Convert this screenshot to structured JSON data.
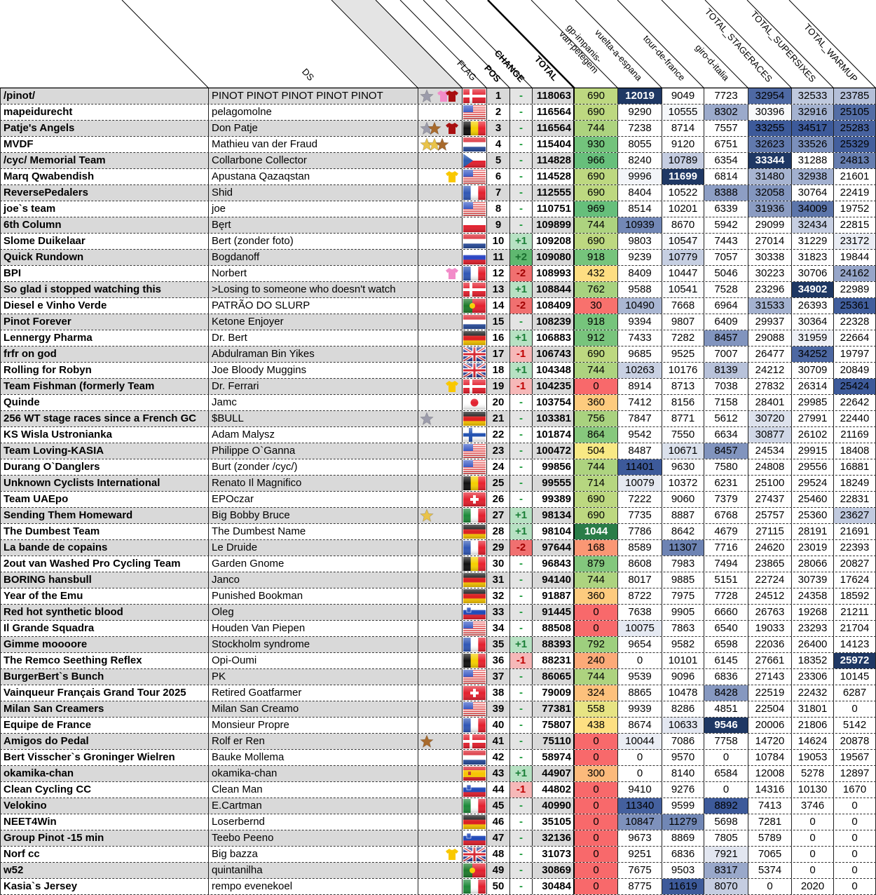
{
  "headers": {
    "team": "",
    "ds": "DS",
    "icons": "",
    "flag": "FLAG",
    "pos": "POS",
    "change": "CHANGE",
    "total": "TOTAL",
    "gp": "gp-impanis-van-petegem",
    "vuelta": "vuelta-a-espana",
    "tour": "tour-de-france",
    "giro": "giro-d-italia",
    "stageraces": "TOTAL_STAGERACES",
    "supersixes": "TOTAL_SUPERSIXES",
    "warmup": "TOTAL_WARMUP"
  },
  "colors": {
    "stripe": "#d9d9d9",
    "gp_low": "#f8696b",
    "gp_mid": "#ffeb84",
    "gp_high": "#63be7b",
    "gp_max": "#2a7d48",
    "race_high": "#3d5a9a",
    "race_max": "#1f3864",
    "change_up1": "#b7e1c3",
    "change_up2": "#5fb870",
    "change_down1": "#f6b8b8",
    "change_down2": "#f07070"
  },
  "rows": [
    {
      "team": "/pinot/",
      "ds": "PINOT PINOT PINOT PINOT PINOT",
      "icons": [
        "star-silver",
        "jersey-pink",
        "jersey-red"
      ],
      "flag": "dk",
      "pos": "1",
      "change": "-",
      "total": "118063",
      "gp": "690",
      "vuelta": "12019",
      "tour": "9049",
      "giro": "7723",
      "stageraces": "32954",
      "supersixes": "32533",
      "warmup": "23785"
    },
    {
      "team": "mapeidurecht",
      "ds": "pelagomolne",
      "icons": [],
      "flag": "us",
      "pos": "2",
      "change": "-",
      "total": "116564",
      "gp": "690",
      "vuelta": "9290",
      "tour": "10555",
      "giro": "8302",
      "stageraces": "30396",
      "supersixes": "32916",
      "warmup": "25105"
    },
    {
      "team": "Patje's Angels",
      "ds": "Don Patje",
      "icons": [
        "star-silver",
        "star-bronze",
        "jersey-red"
      ],
      "flag": "be",
      "pos": "3",
      "change": "-",
      "total": "116564",
      "gp": "744",
      "vuelta": "7238",
      "tour": "8714",
      "giro": "7557",
      "stageraces": "33255",
      "supersixes": "34517",
      "warmup": "25283"
    },
    {
      "team": "MVDF",
      "ds": "Mathieu van der Fraud",
      "icons": [
        "star-gold",
        "star-gold",
        "star-bronze"
      ],
      "flag": "nl",
      "pos": "4",
      "change": "-",
      "total": "115404",
      "gp": "930",
      "vuelta": "8055",
      "tour": "9120",
      "giro": "6751",
      "stageraces": "32623",
      "supersixes": "33526",
      "warmup": "25329"
    },
    {
      "team": "/cyc/ Memorial Team",
      "ds": "Collarbone Collector",
      "icons": [],
      "flag": "cz",
      "pos": "5",
      "change": "-",
      "total": "114828",
      "gp": "966",
      "vuelta": "8240",
      "tour": "10789",
      "giro": "6354",
      "stageraces": "33344",
      "supersixes": "31288",
      "warmup": "24813"
    },
    {
      "team": "Marq Qwabendish",
      "ds": "Apustana Qazaqstan",
      "icons": [
        "jersey-yellow"
      ],
      "flag": "us",
      "pos": "6",
      "change": "-",
      "total": "114528",
      "gp": "690",
      "vuelta": "9996",
      "tour": "11699",
      "giro": "6814",
      "stageraces": "31480",
      "supersixes": "32938",
      "warmup": "21601"
    },
    {
      "team": "ReversePedalers",
      "ds": "Shid",
      "icons": [],
      "flag": "fr",
      "pos": "7",
      "change": "-",
      "total": "112555",
      "gp": "690",
      "vuelta": "8404",
      "tour": "10522",
      "giro": "8388",
      "stageraces": "32058",
      "supersixes": "30764",
      "warmup": "22419"
    },
    {
      "team": "joe`s team",
      "ds": "joe",
      "icons": [],
      "flag": "us",
      "pos": "8",
      "change": "-",
      "total": "110751",
      "gp": "969",
      "vuelta": "8514",
      "tour": "10201",
      "giro": "6339",
      "stageraces": "31936",
      "supersixes": "34009",
      "warmup": "19752"
    },
    {
      "team": "6th Column",
      "ds": "Bęrt",
      "icons": [],
      "flag": "pl",
      "pos": "9",
      "change": "-",
      "total": "109899",
      "gp": "744",
      "vuelta": "10939",
      "tour": "8670",
      "giro": "5942",
      "stageraces": "29099",
      "supersixes": "32434",
      "warmup": "22815"
    },
    {
      "team": "Slome Duikelaar",
      "ds": "Bert (zonder foto)",
      "icons": [],
      "flag": "nl",
      "pos": "10",
      "change": "+1",
      "total": "109208",
      "gp": "690",
      "vuelta": "9803",
      "tour": "10547",
      "giro": "7443",
      "stageraces": "27014",
      "supersixes": "31229",
      "warmup": "23172"
    },
    {
      "team": "Quick Rundown",
      "ds": "Bogdanoff",
      "icons": [],
      "flag": "ru",
      "pos": "11",
      "change": "+2",
      "total": "109080",
      "gp": "918",
      "vuelta": "9239",
      "tour": "10779",
      "giro": "7057",
      "stageraces": "30338",
      "supersixes": "31823",
      "warmup": "19844"
    },
    {
      "team": "BPI",
      "ds": "Norbert",
      "icons": [
        "jersey-pink"
      ],
      "flag": "fr",
      "pos": "12",
      "change": "-2",
      "total": "108993",
      "gp": "432",
      "vuelta": "8409",
      "tour": "10447",
      "giro": "5046",
      "stageraces": "30223",
      "supersixes": "30706",
      "warmup": "24162"
    },
    {
      "team": "So glad i stopped watching this",
      "ds": ">Losing to someone who doesn't watch",
      "icons": [],
      "flag": "dk",
      "pos": "13",
      "change": "+1",
      "total": "108844",
      "gp": "762",
      "vuelta": "9588",
      "tour": "10541",
      "giro": "7528",
      "stageraces": "23296",
      "supersixes": "34902",
      "warmup": "22989"
    },
    {
      "team": "Diesel e Vinho Verde",
      "ds": "PATRÃO DO SLURP",
      "icons": [],
      "flag": "pt",
      "pos": "14",
      "change": "-2",
      "total": "108409",
      "gp": "30",
      "vuelta": "10490",
      "tour": "7668",
      "giro": "6964",
      "stageraces": "31533",
      "supersixes": "26393",
      "warmup": "25361"
    },
    {
      "team": "Pinot Forever",
      "ds": "Ketone Enjoyer",
      "icons": [],
      "flag": "nl",
      "pos": "15",
      "change": "-",
      "total": "108239",
      "gp": "918",
      "vuelta": "9394",
      "tour": "9807",
      "giro": "6409",
      "stageraces": "29937",
      "supersixes": "30364",
      "warmup": "22328"
    },
    {
      "team": "Lennergy Pharma",
      "ds": "Dr. Bert",
      "icons": [],
      "flag": "de",
      "pos": "16",
      "change": "+1",
      "total": "106883",
      "gp": "912",
      "vuelta": "7433",
      "tour": "7282",
      "giro": "8457",
      "stageraces": "29088",
      "supersixes": "31959",
      "warmup": "22664"
    },
    {
      "team": "frfr on god",
      "ds": "Abdulraman Bin Yikes",
      "icons": [],
      "flag": "gb",
      "pos": "17",
      "change": "-1",
      "total": "106743",
      "gp": "690",
      "vuelta": "9685",
      "tour": "9525",
      "giro": "7007",
      "stageraces": "26477",
      "supersixes": "34252",
      "warmup": "19797"
    },
    {
      "team": "Rolling for Robyn",
      "ds": "Joe Bloody Muggins",
      "icons": [],
      "flag": "gb",
      "pos": "18",
      "change": "+1",
      "total": "104348",
      "gp": "744",
      "vuelta": "10263",
      "tour": "10176",
      "giro": "8139",
      "stageraces": "24212",
      "supersixes": "30709",
      "warmup": "20849"
    },
    {
      "team": "Team Fishman (formerly Team",
      "ds": "Dr. Ferrari",
      "icons": [
        "jersey-yellow"
      ],
      "flag": "dk",
      "pos": "19",
      "change": "-1",
      "total": "104235",
      "gp": "0",
      "vuelta": "8914",
      "tour": "8713",
      "giro": "7038",
      "stageraces": "27832",
      "supersixes": "26314",
      "warmup": "25424"
    },
    {
      "team": "Quinde",
      "ds": "Jamc",
      "icons": [],
      "flag": "jp",
      "pos": "20",
      "change": "-",
      "total": "103754",
      "gp": "360",
      "vuelta": "7412",
      "tour": "8156",
      "giro": "7158",
      "stageraces": "28401",
      "supersixes": "29985",
      "warmup": "22642"
    },
    {
      "team": "256 WT stage races since a French GC",
      "ds": "$BULL",
      "icons": [
        "star-silver"
      ],
      "flag": "de",
      "pos": "21",
      "change": "-",
      "total": "103381",
      "gp": "756",
      "vuelta": "7847",
      "tour": "8771",
      "giro": "5612",
      "stageraces": "30720",
      "supersixes": "27991",
      "warmup": "22440"
    },
    {
      "team": "KS Wisla Ustronianka",
      "ds": "Adam Malysz",
      "icons": [],
      "flag": "fi",
      "pos": "22",
      "change": "-",
      "total": "101874",
      "gp": "864",
      "vuelta": "9542",
      "tour": "7550",
      "giro": "6634",
      "stageraces": "30877",
      "supersixes": "26102",
      "warmup": "21169"
    },
    {
      "team": "Team Loving-KASIA",
      "ds": "Philippe O`Ganna",
      "icons": [],
      "flag": "us",
      "pos": "23",
      "change": "-",
      "total": "100472",
      "gp": "504",
      "vuelta": "8487",
      "tour": "10671",
      "giro": "8457",
      "stageraces": "24534",
      "supersixes": "29915",
      "warmup": "18408"
    },
    {
      "team": "Durang O`Danglers",
      "ds": "Burt (zonder /cyc/)",
      "icons": [],
      "flag": "us",
      "pos": "24",
      "change": "-",
      "total": "99856",
      "gp": "744",
      "vuelta": "11401",
      "tour": "9630",
      "giro": "7580",
      "stageraces": "24808",
      "supersixes": "29556",
      "warmup": "16881"
    },
    {
      "team": "Unknown Cyclists International",
      "ds": "Renato Il Magnifico",
      "icons": [],
      "flag": "be",
      "pos": "25",
      "change": "-",
      "total": "99555",
      "gp": "714",
      "vuelta": "10079",
      "tour": "10372",
      "giro": "6231",
      "stageraces": "25100",
      "supersixes": "29524",
      "warmup": "18249"
    },
    {
      "team": "Team UAEpo",
      "ds": "EPOczar",
      "icons": [],
      "flag": "ch",
      "pos": "26",
      "change": "-",
      "total": "99389",
      "gp": "690",
      "vuelta": "7222",
      "tour": "9060",
      "giro": "7379",
      "stageraces": "27437",
      "supersixes": "25460",
      "warmup": "22831"
    },
    {
      "team": "Sending Them Homeward",
      "ds": "Big Bobby Bruce",
      "icons": [
        "star-gold"
      ],
      "flag": "it",
      "pos": "27",
      "change": "+1",
      "total": "98134",
      "gp": "690",
      "vuelta": "7735",
      "tour": "8887",
      "giro": "6768",
      "stageraces": "25757",
      "supersixes": "25360",
      "warmup": "23627"
    },
    {
      "team": "The Dumbest Team",
      "ds": "The Dumbest Name",
      "icons": [],
      "flag": "de",
      "pos": "28",
      "change": "+1",
      "total": "98104",
      "gp": "1044",
      "vuelta": "7786",
      "tour": "8642",
      "giro": "4679",
      "stageraces": "27115",
      "supersixes": "28191",
      "warmup": "21691"
    },
    {
      "team": "La bande de copains",
      "ds": "Le Druide",
      "icons": [],
      "flag": "fr",
      "pos": "29",
      "change": "-2",
      "total": "97644",
      "gp": "168",
      "vuelta": "8589",
      "tour": "11307",
      "giro": "7716",
      "stageraces": "24620",
      "supersixes": "23019",
      "warmup": "22393"
    },
    {
      "team": "2out van Washed Pro Cycling Team",
      "ds": "Garden Gnome",
      "icons": [],
      "flag": "be",
      "pos": "30",
      "change": "-",
      "total": "96843",
      "gp": "879",
      "vuelta": "8608",
      "tour": "7983",
      "giro": "7494",
      "stageraces": "23865",
      "supersixes": "28066",
      "warmup": "20827"
    },
    {
      "team": "BORING hansbull",
      "ds": "Janco",
      "icons": [],
      "flag": "de",
      "pos": "31",
      "change": "-",
      "total": "94140",
      "gp": "744",
      "vuelta": "8017",
      "tour": "9885",
      "giro": "5151",
      "stageraces": "22724",
      "supersixes": "30739",
      "warmup": "17624"
    },
    {
      "team": "Year of the Emu",
      "ds": "Punished Bookman",
      "icons": [],
      "flag": "de",
      "pos": "32",
      "change": "-",
      "total": "91887",
      "gp": "360",
      "vuelta": "8722",
      "tour": "7975",
      "giro": "7728",
      "stageraces": "24512",
      "supersixes": "24358",
      "warmup": "18592"
    },
    {
      "team": "Red hot synthetic blood",
      "ds": "Oleg",
      "icons": [],
      "flag": "si",
      "pos": "33",
      "change": "-",
      "total": "91445",
      "gp": "0",
      "vuelta": "7638",
      "tour": "9905",
      "giro": "6660",
      "stageraces": "26763",
      "supersixes": "19268",
      "warmup": "21211"
    },
    {
      "team": "Il Grande Squadra",
      "ds": "Houden Van Piepen",
      "icons": [],
      "flag": "us",
      "pos": "34",
      "change": "-",
      "total": "88508",
      "gp": "0",
      "vuelta": "10075",
      "tour": "7863",
      "giro": "6540",
      "stageraces": "19033",
      "supersixes": "23293",
      "warmup": "21704"
    },
    {
      "team": "Gimme moooore",
      "ds": "Stockholm syndrome",
      "icons": [],
      "flag": "fr",
      "pos": "35",
      "change": "+1",
      "total": "88393",
      "gp": "792",
      "vuelta": "9654",
      "tour": "9582",
      "giro": "6598",
      "stageraces": "22036",
      "supersixes": "26400",
      "warmup": "14123"
    },
    {
      "team": "The Remco Seething Reflex",
      "ds": "Opi-Oumi",
      "icons": [],
      "flag": "be",
      "pos": "36",
      "change": "-1",
      "total": "88231",
      "gp": "240",
      "vuelta": "0",
      "tour": "10101",
      "giro": "6145",
      "stageraces": "27661",
      "supersixes": "18352",
      "warmup": "25972"
    },
    {
      "team": "BurgerBert`s Bunch",
      "ds": "PK",
      "icons": [],
      "flag": "us",
      "pos": "37",
      "change": "-",
      "total": "86065",
      "gp": "744",
      "vuelta": "9539",
      "tour": "9096",
      "giro": "6836",
      "stageraces": "27143",
      "supersixes": "23306",
      "warmup": "10145"
    },
    {
      "team": "Vainqueur Français Grand Tour 2025",
      "ds": "Retired Goatfarmer",
      "icons": [],
      "flag": "ch",
      "pos": "38",
      "change": "-",
      "total": "79009",
      "gp": "324",
      "vuelta": "8865",
      "tour": "10478",
      "giro": "8428",
      "stageraces": "22519",
      "supersixes": "22432",
      "warmup": "6287"
    },
    {
      "team": "Milan San Creamers",
      "ds": "Milan San Creamo",
      "icons": [],
      "flag": "us",
      "pos": "39",
      "change": "-",
      "total": "77381",
      "gp": "558",
      "vuelta": "9939",
      "tour": "8286",
      "giro": "4851",
      "stageraces": "22504",
      "supersixes": "31801",
      "warmup": "0"
    },
    {
      "team": "Equipe de France",
      "ds": "Monsieur Propre",
      "icons": [],
      "flag": "fr",
      "pos": "40",
      "change": "-",
      "total": "75807",
      "gp": "438",
      "vuelta": "8674",
      "tour": "10633",
      "giro": "9546",
      "stageraces": "20006",
      "supersixes": "21806",
      "warmup": "5142"
    },
    {
      "team": "Amigos do Pedal",
      "ds": "Rolf er Ren",
      "icons": [
        "star-bronze"
      ],
      "flag": "dk",
      "pos": "41",
      "change": "-",
      "total": "75110",
      "gp": "0",
      "vuelta": "10044",
      "tour": "7086",
      "giro": "7758",
      "stageraces": "14720",
      "supersixes": "14624",
      "warmup": "20878"
    },
    {
      "team": "Bert Visscher`s Groninger Wielren",
      "ds": "Bauke Mollema",
      "icons": [],
      "flag": "nl",
      "pos": "42",
      "change": "-",
      "total": "58974",
      "gp": "0",
      "vuelta": "0",
      "tour": "9570",
      "giro": "0",
      "stageraces": "10784",
      "supersixes": "19053",
      "warmup": "19567"
    },
    {
      "team": "okamika-chan",
      "ds": "okamika-chan",
      "icons": [],
      "flag": "es",
      "pos": "43",
      "change": "+1",
      "total": "44907",
      "gp": "300",
      "vuelta": "0",
      "tour": "8140",
      "giro": "6584",
      "stageraces": "12008",
      "supersixes": "5278",
      "warmup": "12897"
    },
    {
      "team": "Clean Cycling CC",
      "ds": "Clean Man",
      "icons": [],
      "flag": "si",
      "pos": "44",
      "change": "-1",
      "total": "44802",
      "gp": "0",
      "vuelta": "9410",
      "tour": "9276",
      "giro": "0",
      "stageraces": "14316",
      "supersixes": "10130",
      "warmup": "1670"
    },
    {
      "team": "Velokino",
      "ds": "E.Cartman",
      "icons": [],
      "flag": "it",
      "pos": "45",
      "change": "-",
      "total": "40990",
      "gp": "0",
      "vuelta": "11340",
      "tour": "9599",
      "giro": "8892",
      "stageraces": "7413",
      "supersixes": "3746",
      "warmup": "0"
    },
    {
      "team": "NEET4Win",
      "ds": "Loserbernd",
      "icons": [],
      "flag": "de",
      "pos": "46",
      "change": "-",
      "total": "35105",
      "gp": "0",
      "vuelta": "10847",
      "tour": "11279",
      "giro": "5698",
      "stageraces": "7281",
      "supersixes": "0",
      "warmup": "0"
    },
    {
      "team": "Group Pinot -15 min",
      "ds": "Teebo Peeno",
      "icons": [],
      "flag": "si",
      "pos": "47",
      "change": "-",
      "total": "32136",
      "gp": "0",
      "vuelta": "9673",
      "tour": "8869",
      "giro": "7805",
      "stageraces": "5789",
      "supersixes": "0",
      "warmup": "0"
    },
    {
      "team": "Norf cc",
      "ds": "Big bazza",
      "icons": [
        "jersey-yellow"
      ],
      "flag": "gb",
      "pos": "48",
      "change": "-",
      "total": "31073",
      "gp": "0",
      "vuelta": "9251",
      "tour": "6836",
      "giro": "7921",
      "stageraces": "7065",
      "supersixes": "0",
      "warmup": "0"
    },
    {
      "team": "w52",
      "ds": "quintanilha",
      "icons": [],
      "flag": "pt",
      "pos": "49",
      "change": "-",
      "total": "30869",
      "gp": "0",
      "vuelta": "7675",
      "tour": "9503",
      "giro": "8317",
      "stageraces": "5374",
      "supersixes": "0",
      "warmup": "0"
    },
    {
      "team": "Kasia`s Jersey",
      "ds": "rempo evenekoel",
      "icons": [],
      "flag": "it",
      "pos": "50",
      "change": "-",
      "total": "30484",
      "gp": "0",
      "vuelta": "8775",
      "tour": "11619",
      "giro": "8070",
      "stageraces": "0",
      "supersixes": "2020",
      "warmup": "0"
    }
  ]
}
